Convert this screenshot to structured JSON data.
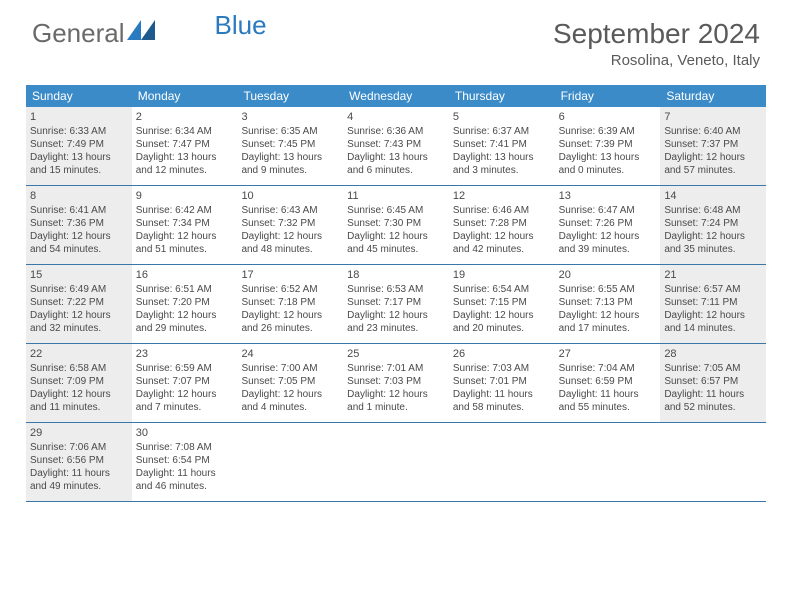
{
  "logo": {
    "part1": "General",
    "part2": "Blue"
  },
  "title": "September 2024",
  "location": "Rosolina, Veneto, Italy",
  "colors": {
    "header_bg": "#3b8bc9",
    "row_border": "#3b76a8",
    "fill_bg": "#ededed",
    "text": "#4a4a4a",
    "logo_grey": "#6a6a6a",
    "logo_blue": "#2a7abf"
  },
  "dow": [
    "Sunday",
    "Monday",
    "Tuesday",
    "Wednesday",
    "Thursday",
    "Friday",
    "Saturday"
  ],
  "weeks": [
    [
      {
        "n": "1",
        "fill": true,
        "sr": "6:33 AM",
        "ss": "7:49 PM",
        "dl": "13 hours and 15 minutes."
      },
      {
        "n": "2",
        "fill": false,
        "sr": "6:34 AM",
        "ss": "7:47 PM",
        "dl": "13 hours and 12 minutes."
      },
      {
        "n": "3",
        "fill": false,
        "sr": "6:35 AM",
        "ss": "7:45 PM",
        "dl": "13 hours and 9 minutes."
      },
      {
        "n": "4",
        "fill": false,
        "sr": "6:36 AM",
        "ss": "7:43 PM",
        "dl": "13 hours and 6 minutes."
      },
      {
        "n": "5",
        "fill": false,
        "sr": "6:37 AM",
        "ss": "7:41 PM",
        "dl": "13 hours and 3 minutes."
      },
      {
        "n": "6",
        "fill": false,
        "sr": "6:39 AM",
        "ss": "7:39 PM",
        "dl": "13 hours and 0 minutes."
      },
      {
        "n": "7",
        "fill": true,
        "sr": "6:40 AM",
        "ss": "7:37 PM",
        "dl": "12 hours and 57 minutes."
      }
    ],
    [
      {
        "n": "8",
        "fill": true,
        "sr": "6:41 AM",
        "ss": "7:36 PM",
        "dl": "12 hours and 54 minutes."
      },
      {
        "n": "9",
        "fill": false,
        "sr": "6:42 AM",
        "ss": "7:34 PM",
        "dl": "12 hours and 51 minutes."
      },
      {
        "n": "10",
        "fill": false,
        "sr": "6:43 AM",
        "ss": "7:32 PM",
        "dl": "12 hours and 48 minutes."
      },
      {
        "n": "11",
        "fill": false,
        "sr": "6:45 AM",
        "ss": "7:30 PM",
        "dl": "12 hours and 45 minutes."
      },
      {
        "n": "12",
        "fill": false,
        "sr": "6:46 AM",
        "ss": "7:28 PM",
        "dl": "12 hours and 42 minutes."
      },
      {
        "n": "13",
        "fill": false,
        "sr": "6:47 AM",
        "ss": "7:26 PM",
        "dl": "12 hours and 39 minutes."
      },
      {
        "n": "14",
        "fill": true,
        "sr": "6:48 AM",
        "ss": "7:24 PM",
        "dl": "12 hours and 35 minutes."
      }
    ],
    [
      {
        "n": "15",
        "fill": true,
        "sr": "6:49 AM",
        "ss": "7:22 PM",
        "dl": "12 hours and 32 minutes."
      },
      {
        "n": "16",
        "fill": false,
        "sr": "6:51 AM",
        "ss": "7:20 PM",
        "dl": "12 hours and 29 minutes."
      },
      {
        "n": "17",
        "fill": false,
        "sr": "6:52 AM",
        "ss": "7:18 PM",
        "dl": "12 hours and 26 minutes."
      },
      {
        "n": "18",
        "fill": false,
        "sr": "6:53 AM",
        "ss": "7:17 PM",
        "dl": "12 hours and 23 minutes."
      },
      {
        "n": "19",
        "fill": false,
        "sr": "6:54 AM",
        "ss": "7:15 PM",
        "dl": "12 hours and 20 minutes."
      },
      {
        "n": "20",
        "fill": false,
        "sr": "6:55 AM",
        "ss": "7:13 PM",
        "dl": "12 hours and 17 minutes."
      },
      {
        "n": "21",
        "fill": true,
        "sr": "6:57 AM",
        "ss": "7:11 PM",
        "dl": "12 hours and 14 minutes."
      }
    ],
    [
      {
        "n": "22",
        "fill": true,
        "sr": "6:58 AM",
        "ss": "7:09 PM",
        "dl": "12 hours and 11 minutes."
      },
      {
        "n": "23",
        "fill": false,
        "sr": "6:59 AM",
        "ss": "7:07 PM",
        "dl": "12 hours and 7 minutes."
      },
      {
        "n": "24",
        "fill": false,
        "sr": "7:00 AM",
        "ss": "7:05 PM",
        "dl": "12 hours and 4 minutes."
      },
      {
        "n": "25",
        "fill": false,
        "sr": "7:01 AM",
        "ss": "7:03 PM",
        "dl": "12 hours and 1 minute."
      },
      {
        "n": "26",
        "fill": false,
        "sr": "7:03 AM",
        "ss": "7:01 PM",
        "dl": "11 hours and 58 minutes."
      },
      {
        "n": "27",
        "fill": false,
        "sr": "7:04 AM",
        "ss": "6:59 PM",
        "dl": "11 hours and 55 minutes."
      },
      {
        "n": "28",
        "fill": true,
        "sr": "7:05 AM",
        "ss": "6:57 PM",
        "dl": "11 hours and 52 minutes."
      }
    ],
    [
      {
        "n": "29",
        "fill": true,
        "sr": "7:06 AM",
        "ss": "6:56 PM",
        "dl": "11 hours and 49 minutes."
      },
      {
        "n": "30",
        "fill": false,
        "sr": "7:08 AM",
        "ss": "6:54 PM",
        "dl": "11 hours and 46 minutes."
      },
      null,
      null,
      null,
      null,
      null
    ]
  ],
  "labels": {
    "sunrise": "Sunrise: ",
    "sunset": "Sunset: ",
    "daylight": "Daylight: "
  }
}
